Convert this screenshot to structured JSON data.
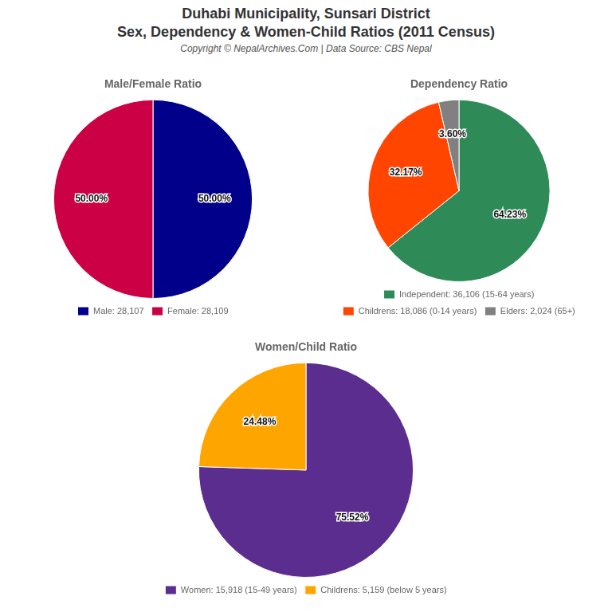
{
  "title": [
    "Duhabi Municipality, Sunsari District",
    "Sex, Dependency & Women-Child Ratios (2011 Census)"
  ],
  "subtitle": "Copyright © NepalArchives.Com | Data Source: CBS Nepal",
  "chart_data": [
    {
      "type": "pie",
      "title": "Male/Female Ratio",
      "categories": [
        "Male: 28,107",
        "Female: 28,109"
      ],
      "values": [
        50.0,
        50.0
      ],
      "value_labels": [
        "50.00%",
        "50.00%"
      ],
      "colors": [
        "#00008B",
        "#CC0044"
      ],
      "data_labels": true,
      "legend": "bottom"
    },
    {
      "type": "pie",
      "title": "Dependency Ratio",
      "categories": [
        "Independent: 36,106 (15-64 years)",
        "Childrens: 18,086 (0-14 years)",
        "Elders: 2,024 (65+)"
      ],
      "values": [
        64.23,
        32.17,
        3.6
      ],
      "value_labels": [
        "64.23%",
        "32.17%",
        "3.60%"
      ],
      "colors": [
        "#2E8B57",
        "#FF4500",
        "#808080"
      ],
      "data_labels": true,
      "legend": "bottom"
    },
    {
      "type": "pie",
      "title": "Women/Child Ratio",
      "categories": [
        "Women: 15,918 (15-49 years)",
        "Childrens: 5,159 (below 5 years)"
      ],
      "values": [
        75.52,
        24.48
      ],
      "value_labels": [
        "75.52%",
        "24.48%"
      ],
      "colors": [
        "#5B2D8E",
        "#FFA500"
      ],
      "data_labels": true,
      "legend": "bottom"
    }
  ]
}
